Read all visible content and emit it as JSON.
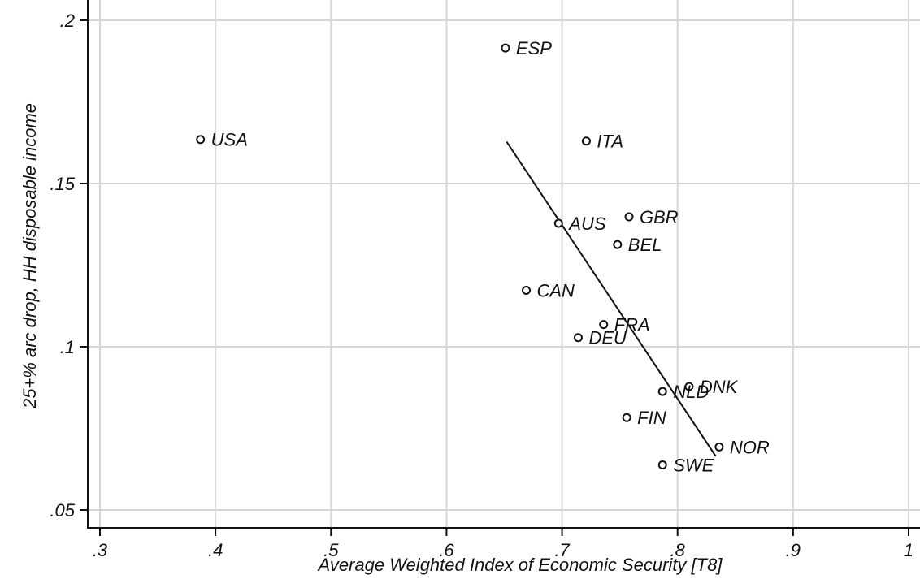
{
  "chart_data": {
    "type": "scatter",
    "xlabel": "Average Weighted Index of Economic Security [T8]",
    "ylabel": "25+% arc drop, HH disposable income",
    "xlim": [
      0.29,
      1.01
    ],
    "ylim": [
      0.045,
      0.202
    ],
    "xticks": [
      {
        "value": 0.3,
        "label": ".3"
      },
      {
        "value": 0.4,
        "label": ".4"
      },
      {
        "value": 0.5,
        "label": ".5"
      },
      {
        "value": 0.6,
        "label": ".6"
      },
      {
        "value": 0.7,
        "label": ".7"
      },
      {
        "value": 0.8,
        "label": ".8"
      },
      {
        "value": 0.9,
        "label": ".9"
      },
      {
        "value": 1.0,
        "label": "1"
      }
    ],
    "yticks": [
      {
        "value": 0.05,
        "label": ".05"
      },
      {
        "value": 0.1,
        "label": ".1"
      },
      {
        "value": 0.15,
        "label": ".15"
      },
      {
        "value": 0.2,
        "label": ".2"
      }
    ],
    "grid": true,
    "points": [
      {
        "label": "USA",
        "x": 0.387,
        "y": 0.1635
      },
      {
        "label": "ESP",
        "x": 0.651,
        "y": 0.1915
      },
      {
        "label": "ITA",
        "x": 0.721,
        "y": 0.163
      },
      {
        "label": "AUS",
        "x": 0.697,
        "y": 0.1378
      },
      {
        "label": "GBR",
        "x": 0.758,
        "y": 0.1398
      },
      {
        "label": "BEL",
        "x": 0.748,
        "y": 0.1313
      },
      {
        "label": "CAN",
        "x": 0.669,
        "y": 0.1173
      },
      {
        "label": "FRA",
        "x": 0.736,
        "y": 0.1068
      },
      {
        "label": "DEU",
        "x": 0.714,
        "y": 0.1028
      },
      {
        "label": "DNK",
        "x": 0.81,
        "y": 0.0878
      },
      {
        "label": "NLD",
        "x": 0.787,
        "y": 0.0863
      },
      {
        "label": "FIN",
        "x": 0.756,
        "y": 0.0783
      },
      {
        "label": "NOR",
        "x": 0.836,
        "y": 0.0693
      },
      {
        "label": "SWE",
        "x": 0.787,
        "y": 0.0638
      }
    ],
    "fit_line": {
      "x": [
        0.652,
        0.833
      ],
      "y": [
        0.1628,
        0.0665
      ]
    }
  }
}
